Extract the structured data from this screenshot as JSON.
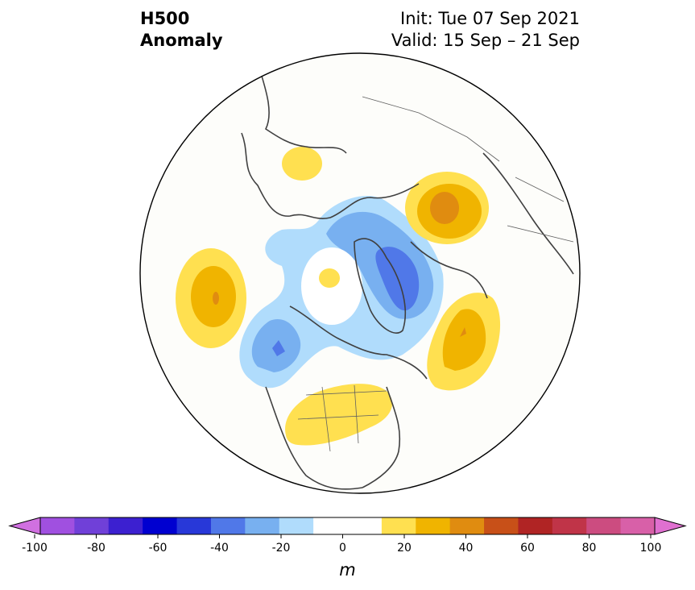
{
  "title": {
    "line1": "H500",
    "line2": "Anomaly",
    "init": "Init: Tue 07 Sep 2021",
    "valid": "Valid: 15 Sep – 21 Sep"
  },
  "colorbar": {
    "unit": "m",
    "ticks": [
      "-100",
      "-80",
      "-60",
      "-40",
      "-20",
      "0",
      "20",
      "40",
      "60",
      "80",
      "100"
    ],
    "colors": [
      "#a050e0",
      "#7040d8",
      "#3c20d0",
      "#0000d0",
      "#2838d8",
      "#5078e8",
      "#78b0f0",
      "#b0dcfc",
      "#ffffff",
      "#ffffff",
      "#ffe050",
      "#f0b400",
      "#e08c10",
      "#c85018",
      "#b02424",
      "#c03448",
      "#cc4c80",
      "#d860a8"
    ],
    "under_color": "#d070e0",
    "over_color": "#e070d0"
  },
  "anomalies": [
    {
      "id": "positive-north-pacific",
      "color_values": [
        20,
        30,
        40
      ]
    },
    {
      "id": "negative-alaska",
      "color_values": [
        -20,
        -30,
        -40
      ]
    },
    {
      "id": "negative-greenland",
      "color_values": [
        -20,
        -30,
        -40
      ]
    },
    {
      "id": "positive-western-russia",
      "color_values": [
        20,
        30,
        40
      ]
    },
    {
      "id": "positive-north-atlantic",
      "color_values": [
        20,
        30,
        40
      ]
    },
    {
      "id": "positive-central-us",
      "color_values": [
        20
      ]
    },
    {
      "id": "positive-siberia",
      "color_values": [
        20
      ]
    }
  ]
}
